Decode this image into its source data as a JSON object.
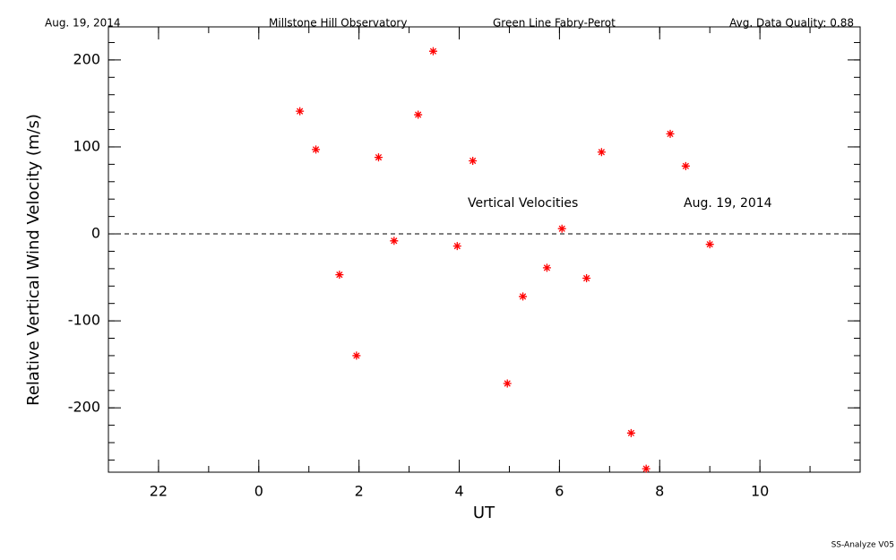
{
  "chart_data": {
    "type": "scatter",
    "header": [
      "Aug. 19, 2014",
      "Millstone Hill Observatory",
      "Green Line Fabry-Perot",
      "Avg. Data Quality: 0.88"
    ],
    "annotations": [
      "Vertical Velocities",
      "Aug. 19, 2014"
    ],
    "footer": "SS-Analyze V05",
    "x_label": "UT",
    "y_label": "Relative Vertical Wind Velocity (m/s)",
    "color": "#ff0000",
    "zero_line": 0,
    "xlim": [
      21,
      36
    ],
    "xticks": [
      {
        "value": 22,
        "label": "22"
      },
      {
        "value": 24,
        "label": "0"
      },
      {
        "value": 26,
        "label": "2"
      },
      {
        "value": 28,
        "label": "4"
      },
      {
        "value": 30,
        "label": "6"
      },
      {
        "value": 32,
        "label": "8"
      },
      {
        "value": 34,
        "label": "10"
      }
    ],
    "ylim": [
      -274,
      238
    ],
    "yticks": [
      -200,
      -100,
      0,
      100,
      200
    ],
    "x": [
      24.82,
      25.14,
      25.61,
      25.95,
      26.39,
      26.7,
      27.18,
      27.48,
      27.96,
      28.27,
      28.96,
      29.27,
      29.75,
      30.05,
      30.54,
      30.84,
      31.43,
      31.73,
      32.21,
      32.52,
      33.0
    ],
    "values": [
      141,
      97,
      -47,
      -140,
      88,
      -8,
      137,
      210,
      -14,
      84,
      -172,
      -72,
      -39,
      6,
      -51,
      94,
      -229,
      -270,
      115,
      78,
      -12
    ]
  }
}
